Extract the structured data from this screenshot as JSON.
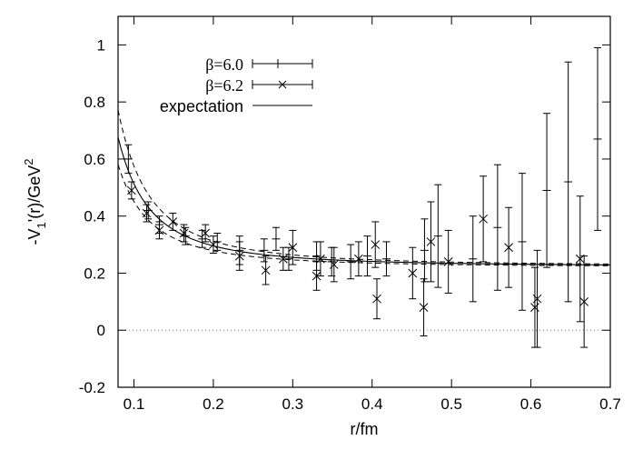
{
  "chart_data": {
    "type": "scatter",
    "title": "",
    "xlabel": "r/fm",
    "ylabel": "-V1'(r)/GeV2",
    "ylabel_parts": {
      "prefix": "-V",
      "sub": "1",
      "middle": "'(r)/GeV",
      "sup": "2"
    },
    "xlim": [
      0.08,
      0.7
    ],
    "ylim": [
      -0.2,
      1.1
    ],
    "xticks": [
      0.1,
      0.2,
      0.3,
      0.4,
      0.5,
      0.6,
      0.7
    ],
    "xtick_labels": [
      "0.1",
      "0.2",
      "0.3",
      "0.4",
      "0.5",
      "0.6",
      "0.7"
    ],
    "yticks": [
      -0.2,
      0,
      0.2,
      0.4,
      0.6,
      0.8,
      1
    ],
    "ytick_labels": [
      "-0.2",
      "0",
      "0.2",
      "0.4",
      "0.6",
      "0.8",
      "1"
    ],
    "zero_line": 0,
    "legend_position": "top-left",
    "series": [
      {
        "name": "β=6.0",
        "marker": "plus",
        "points": [
          {
            "x": 0.093,
            "y": 0.6,
            "err": 0.05
          },
          {
            "x": 0.118,
            "y": 0.42,
            "err": 0.03
          },
          {
            "x": 0.132,
            "y": 0.37,
            "err": 0.03
          },
          {
            "x": 0.165,
            "y": 0.33,
            "err": 0.03
          },
          {
            "x": 0.186,
            "y": 0.32,
            "err": 0.03
          },
          {
            "x": 0.205,
            "y": 0.31,
            "err": 0.03
          },
          {
            "x": 0.233,
            "y": 0.28,
            "err": 0.05
          },
          {
            "x": 0.264,
            "y": 0.28,
            "err": 0.04
          },
          {
            "x": 0.279,
            "y": 0.32,
            "err": 0.04
          },
          {
            "x": 0.295,
            "y": 0.25,
            "err": 0.04
          },
          {
            "x": 0.33,
            "y": 0.26,
            "err": 0.05
          },
          {
            "x": 0.349,
            "y": 0.24,
            "err": 0.05
          },
          {
            "x": 0.373,
            "y": 0.24,
            "err": 0.06
          },
          {
            "x": 0.394,
            "y": 0.26,
            "err": 0.07
          },
          {
            "x": 0.418,
            "y": 0.25,
            "err": 0.06
          },
          {
            "x": 0.466,
            "y": 0.28,
            "err": 0.11
          },
          {
            "x": 0.483,
            "y": 0.33,
            "err": 0.18
          },
          {
            "x": 0.527,
            "y": 0.25,
            "err": 0.15
          },
          {
            "x": 0.558,
            "y": 0.36,
            "err": 0.22
          },
          {
            "x": 0.589,
            "y": 0.31,
            "err": 0.24
          },
          {
            "x": 0.62,
            "y": 0.49,
            "err": 0.27
          },
          {
            "x": 0.647,
            "y": 0.52,
            "err": 0.42
          },
          {
            "x": 0.684,
            "y": 0.67,
            "err": 0.32
          }
        ]
      },
      {
        "name": "β=6.2",
        "marker": "cross",
        "points": [
          {
            "x": 0.097,
            "y": 0.49,
            "err": 0.03
          },
          {
            "x": 0.116,
            "y": 0.41,
            "err": 0.03
          },
          {
            "x": 0.132,
            "y": 0.35,
            "err": 0.03
          },
          {
            "x": 0.149,
            "y": 0.38,
            "err": 0.03
          },
          {
            "x": 0.163,
            "y": 0.34,
            "err": 0.03
          },
          {
            "x": 0.19,
            "y": 0.34,
            "err": 0.03
          },
          {
            "x": 0.2,
            "y": 0.3,
            "err": 0.03
          },
          {
            "x": 0.233,
            "y": 0.26,
            "err": 0.05
          },
          {
            "x": 0.266,
            "y": 0.21,
            "err": 0.05
          },
          {
            "x": 0.288,
            "y": 0.25,
            "err": 0.04
          },
          {
            "x": 0.3,
            "y": 0.29,
            "err": 0.06
          },
          {
            "x": 0.33,
            "y": 0.19,
            "err": 0.05
          },
          {
            "x": 0.335,
            "y": 0.25,
            "err": 0.06
          },
          {
            "x": 0.352,
            "y": 0.23,
            "err": 0.06
          },
          {
            "x": 0.383,
            "y": 0.25,
            "err": 0.06
          },
          {
            "x": 0.404,
            "y": 0.3,
            "err": 0.08
          },
          {
            "x": 0.406,
            "y": 0.11,
            "err": 0.07
          },
          {
            "x": 0.451,
            "y": 0.2,
            "err": 0.09
          },
          {
            "x": 0.465,
            "y": 0.08,
            "err": 0.1
          },
          {
            "x": 0.474,
            "y": 0.31,
            "err": 0.14
          },
          {
            "x": 0.496,
            "y": 0.24,
            "err": 0.11
          },
          {
            "x": 0.54,
            "y": 0.39,
            "err": 0.15
          },
          {
            "x": 0.572,
            "y": 0.29,
            "err": 0.14
          },
          {
            "x": 0.605,
            "y": 0.08,
            "err": 0.14
          },
          {
            "x": 0.608,
            "y": 0.11,
            "err": 0.17
          },
          {
            "x": 0.662,
            "y": 0.25,
            "err": 0.22
          },
          {
            "x": 0.667,
            "y": 0.1,
            "err": 0.16
          }
        ]
      },
      {
        "name": "expectation",
        "marker": "line",
        "curve": {
          "form": "y = a + b / x^2",
          "a": 0.223,
          "b": 0.0029,
          "x_from": 0.08,
          "x_to": 0.7
        },
        "band": {
          "form": "y = a + b / x^2",
          "a_lower": 0.221,
          "b_lower": 0.0023,
          "a_upper": 0.225,
          "b_upper": 0.0035
        }
      }
    ]
  }
}
